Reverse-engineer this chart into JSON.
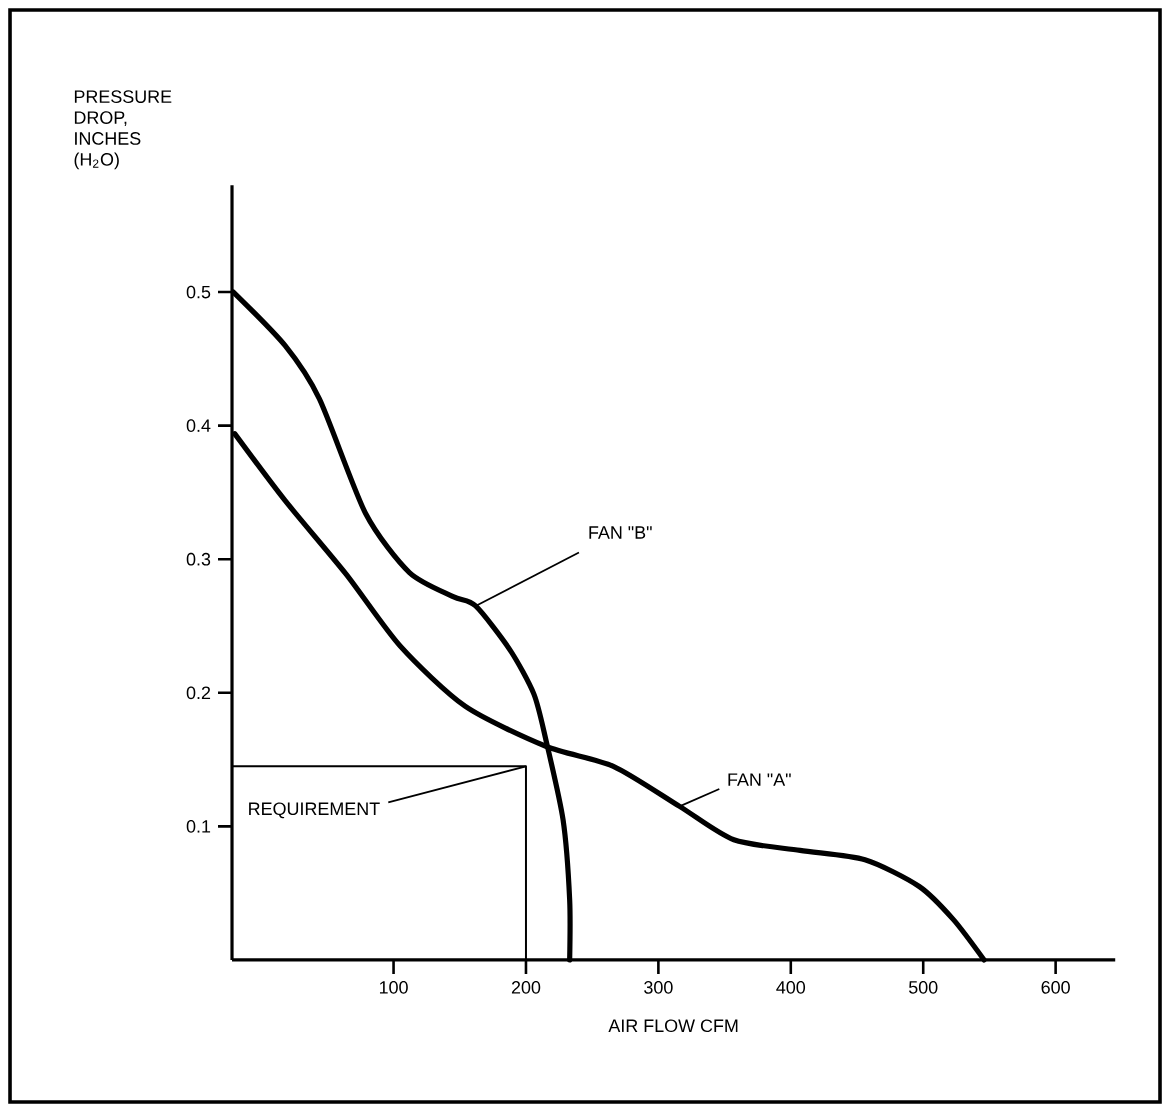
{
  "chart_data": {
    "type": "line",
    "xlabel": "AIR FLOW CFM",
    "ylabel": "PRESSURE DROP, INCHES (H$_{2}$O)",
    "xlim": [
      -22,
      645
    ],
    "ylim": [
      0,
      0.58
    ],
    "xticks": [
      100,
      200,
      300,
      400,
      500,
      600
    ],
    "yticks": [
      0.1,
      0.2,
      0.3,
      0.4,
      0.5
    ],
    "legend": false,
    "grid": false,
    "marker": "none",
    "line_style": "solid",
    "series": [
      {
        "name": "FAN \"B\"",
        "color": "#000000",
        "x": [
          -21,
          18,
          44,
          79,
          112,
          145,
          162,
          188,
          206,
          215,
          228,
          233,
          233
        ],
        "values": [
          0.5,
          0.46,
          0.42,
          0.334,
          0.29,
          0.272,
          0.265,
          0.232,
          0.199,
          0.165,
          0.105,
          0.045,
          0
        ]
      },
      {
        "name": "FAN \"A\"",
        "color": "#000000",
        "x": [
          -20,
          18,
          64,
          105,
          154,
          215,
          266,
          316,
          357,
          407,
          456,
          497,
          523,
          546
        ],
        "values": [
          0.394,
          0.344,
          0.289,
          0.235,
          0.19,
          0.16,
          0.145,
          0.115,
          0.09,
          0.082,
          0.075,
          0.055,
          0.03,
          0
        ]
      },
      {
        "name": "REQUIREMENT",
        "color": "#000000",
        "x": [
          -22,
          200,
          200
        ],
        "values": [
          0.145,
          0.145,
          0
        ]
      }
    ]
  }
}
